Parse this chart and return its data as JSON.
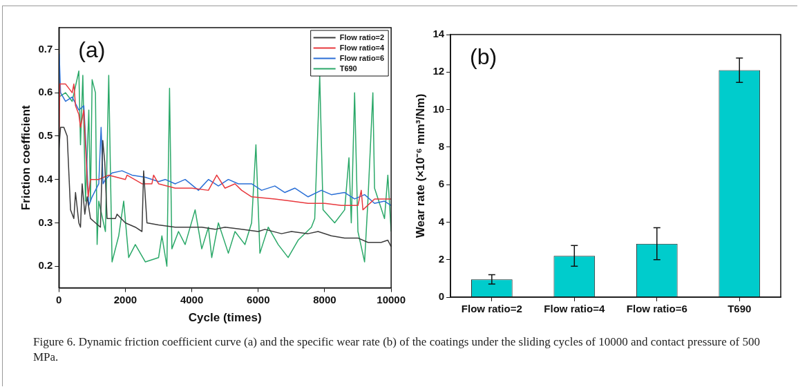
{
  "chart_data": [
    {
      "type": "line",
      "xlabel": "Cycle (times)",
      "ylabel": "Friction coefficient",
      "xlim": [
        0,
        10000
      ],
      "xticks": [
        0,
        2000,
        4000,
        6000,
        8000,
        10000
      ],
      "ylim": [
        0.15,
        0.75
      ],
      "yticks": [
        0.2,
        0.3,
        0.4,
        0.5,
        0.6,
        0.7
      ],
      "grid": false,
      "legend": "top right",
      "marker": "none",
      "annotations": [
        "(a)",
        "Figure 6. Dynamic friction coefficient curve (a) and the specific wear rate (b) of the coatings under the sliding cycles of 10000 and contact pressure of 500 MPa."
      ],
      "series": [
        {
          "name": "Flow ratio=2",
          "color": "#3a3a3a",
          "x": [
            0,
            50,
            150,
            250,
            350,
            450,
            500,
            600,
            650,
            700,
            780,
            850,
            950,
            1100,
            1250,
            1320,
            1380,
            1450,
            1700,
            1750,
            2000,
            2300,
            2500,
            2550,
            2650,
            3000,
            3500,
            4000,
            4300,
            4700,
            5000,
            5500,
            6000,
            6200,
            6700,
            7000,
            7500,
            7800,
            8200,
            8600,
            9000,
            9300,
            9700,
            9900,
            10000
          ],
          "values": [
            0.47,
            0.52,
            0.52,
            0.5,
            0.33,
            0.31,
            0.37,
            0.3,
            0.29,
            0.39,
            0.32,
            0.36,
            0.31,
            0.3,
            0.29,
            0.49,
            0.44,
            0.31,
            0.31,
            0.32,
            0.3,
            0.29,
            0.28,
            0.42,
            0.3,
            0.295,
            0.29,
            0.29,
            0.29,
            0.285,
            0.29,
            0.285,
            0.28,
            0.285,
            0.275,
            0.28,
            0.275,
            0.28,
            0.27,
            0.265,
            0.265,
            0.255,
            0.255,
            0.26,
            0.245
          ]
        },
        {
          "name": "Flow ratio=4",
          "color": "#e8383d",
          "x": [
            0,
            30,
            200,
            400,
            450,
            500,
            600,
            650,
            750,
            850,
            880,
            950,
            1200,
            1500,
            2000,
            2050,
            2500,
            2800,
            2850,
            3000,
            3500,
            4000,
            4500,
            4750,
            5000,
            5300,
            5500,
            5800,
            6500,
            7000,
            7500,
            8000,
            8500,
            9000,
            9100,
            9150,
            9500,
            10000
          ],
          "values": [
            0.48,
            0.62,
            0.62,
            0.6,
            0.62,
            0.57,
            0.55,
            0.52,
            0.56,
            0.4,
            0.36,
            0.4,
            0.4,
            0.41,
            0.4,
            0.41,
            0.39,
            0.39,
            0.41,
            0.39,
            0.38,
            0.38,
            0.375,
            0.41,
            0.38,
            0.39,
            0.375,
            0.36,
            0.355,
            0.35,
            0.345,
            0.345,
            0.34,
            0.34,
            0.375,
            0.33,
            0.355,
            0.355
          ]
        },
        {
          "name": "Flow ratio=6",
          "color": "#2a6fd6",
          "x": [
            10,
            50,
            200,
            400,
            600,
            750,
            800,
            900,
            1000,
            1200,
            1270,
            1330,
            1400,
            1600,
            1900,
            2200,
            2600,
            3000,
            3200,
            3500,
            3800,
            4200,
            4500,
            4800,
            5100,
            5400,
            5800,
            6100,
            6500,
            6800,
            7100,
            7500,
            7900,
            8200,
            8600,
            8900,
            9200,
            9500,
            9800,
            10000
          ],
          "values": [
            0.69,
            0.6,
            0.58,
            0.59,
            0.56,
            0.57,
            0.5,
            0.34,
            0.36,
            0.39,
            0.52,
            0.39,
            0.4,
            0.415,
            0.42,
            0.41,
            0.405,
            0.395,
            0.4,
            0.39,
            0.4,
            0.375,
            0.4,
            0.385,
            0.4,
            0.39,
            0.39,
            0.375,
            0.385,
            0.37,
            0.38,
            0.36,
            0.375,
            0.365,
            0.37,
            0.355,
            0.365,
            0.345,
            0.35,
            0.34
          ]
        },
        {
          "name": "T690",
          "color": "#2aa868",
          "x": [
            0,
            200,
            400,
            600,
            650,
            720,
            800,
            900,
            950,
            1000,
            1100,
            1150,
            1200,
            1400,
            1500,
            1600,
            1800,
            1950,
            2100,
            2300,
            2600,
            3000,
            3100,
            3250,
            3330,
            3400,
            3600,
            3800,
            4100,
            4300,
            4500,
            4600,
            4800,
            5100,
            5300,
            5600,
            5800,
            5930,
            6050,
            6300,
            6600,
            6900,
            7200,
            7600,
            7700,
            7850,
            7950,
            8300,
            8600,
            8730,
            8800,
            8900,
            9000,
            9200,
            9300,
            9450,
            9500,
            9800,
            9900,
            10000
          ],
          "values": [
            0.59,
            0.6,
            0.58,
            0.65,
            0.48,
            0.64,
            0.35,
            0.56,
            0.35,
            0.63,
            0.6,
            0.25,
            0.35,
            0.28,
            0.64,
            0.21,
            0.27,
            0.35,
            0.22,
            0.25,
            0.21,
            0.22,
            0.27,
            0.2,
            0.61,
            0.24,
            0.28,
            0.25,
            0.33,
            0.24,
            0.29,
            0.22,
            0.3,
            0.23,
            0.28,
            0.25,
            0.3,
            0.48,
            0.23,
            0.29,
            0.25,
            0.22,
            0.26,
            0.29,
            0.31,
            0.64,
            0.33,
            0.3,
            0.33,
            0.45,
            0.3,
            0.6,
            0.28,
            0.21,
            0.35,
            0.6,
            0.38,
            0.31,
            0.41,
            0.28
          ]
        }
      ]
    },
    {
      "type": "bar",
      "ylabel": "Wear rate (×10⁻⁶ mm³/Nm)",
      "categories": [
        "Flow ratio=2",
        "Flow ratio=4",
        "Flow ratio=6",
        "T690"
      ],
      "values": [
        0.95,
        2.2,
        2.85,
        12.1
      ],
      "errors": [
        0.25,
        0.55,
        0.85,
        0.65
      ],
      "color": "#00cccc",
      "ylim": [
        0,
        14
      ],
      "yticks": [
        0,
        2,
        4,
        6,
        8,
        10,
        12,
        14
      ],
      "grid": false,
      "annotations": [
        "(b)"
      ]
    }
  ]
}
